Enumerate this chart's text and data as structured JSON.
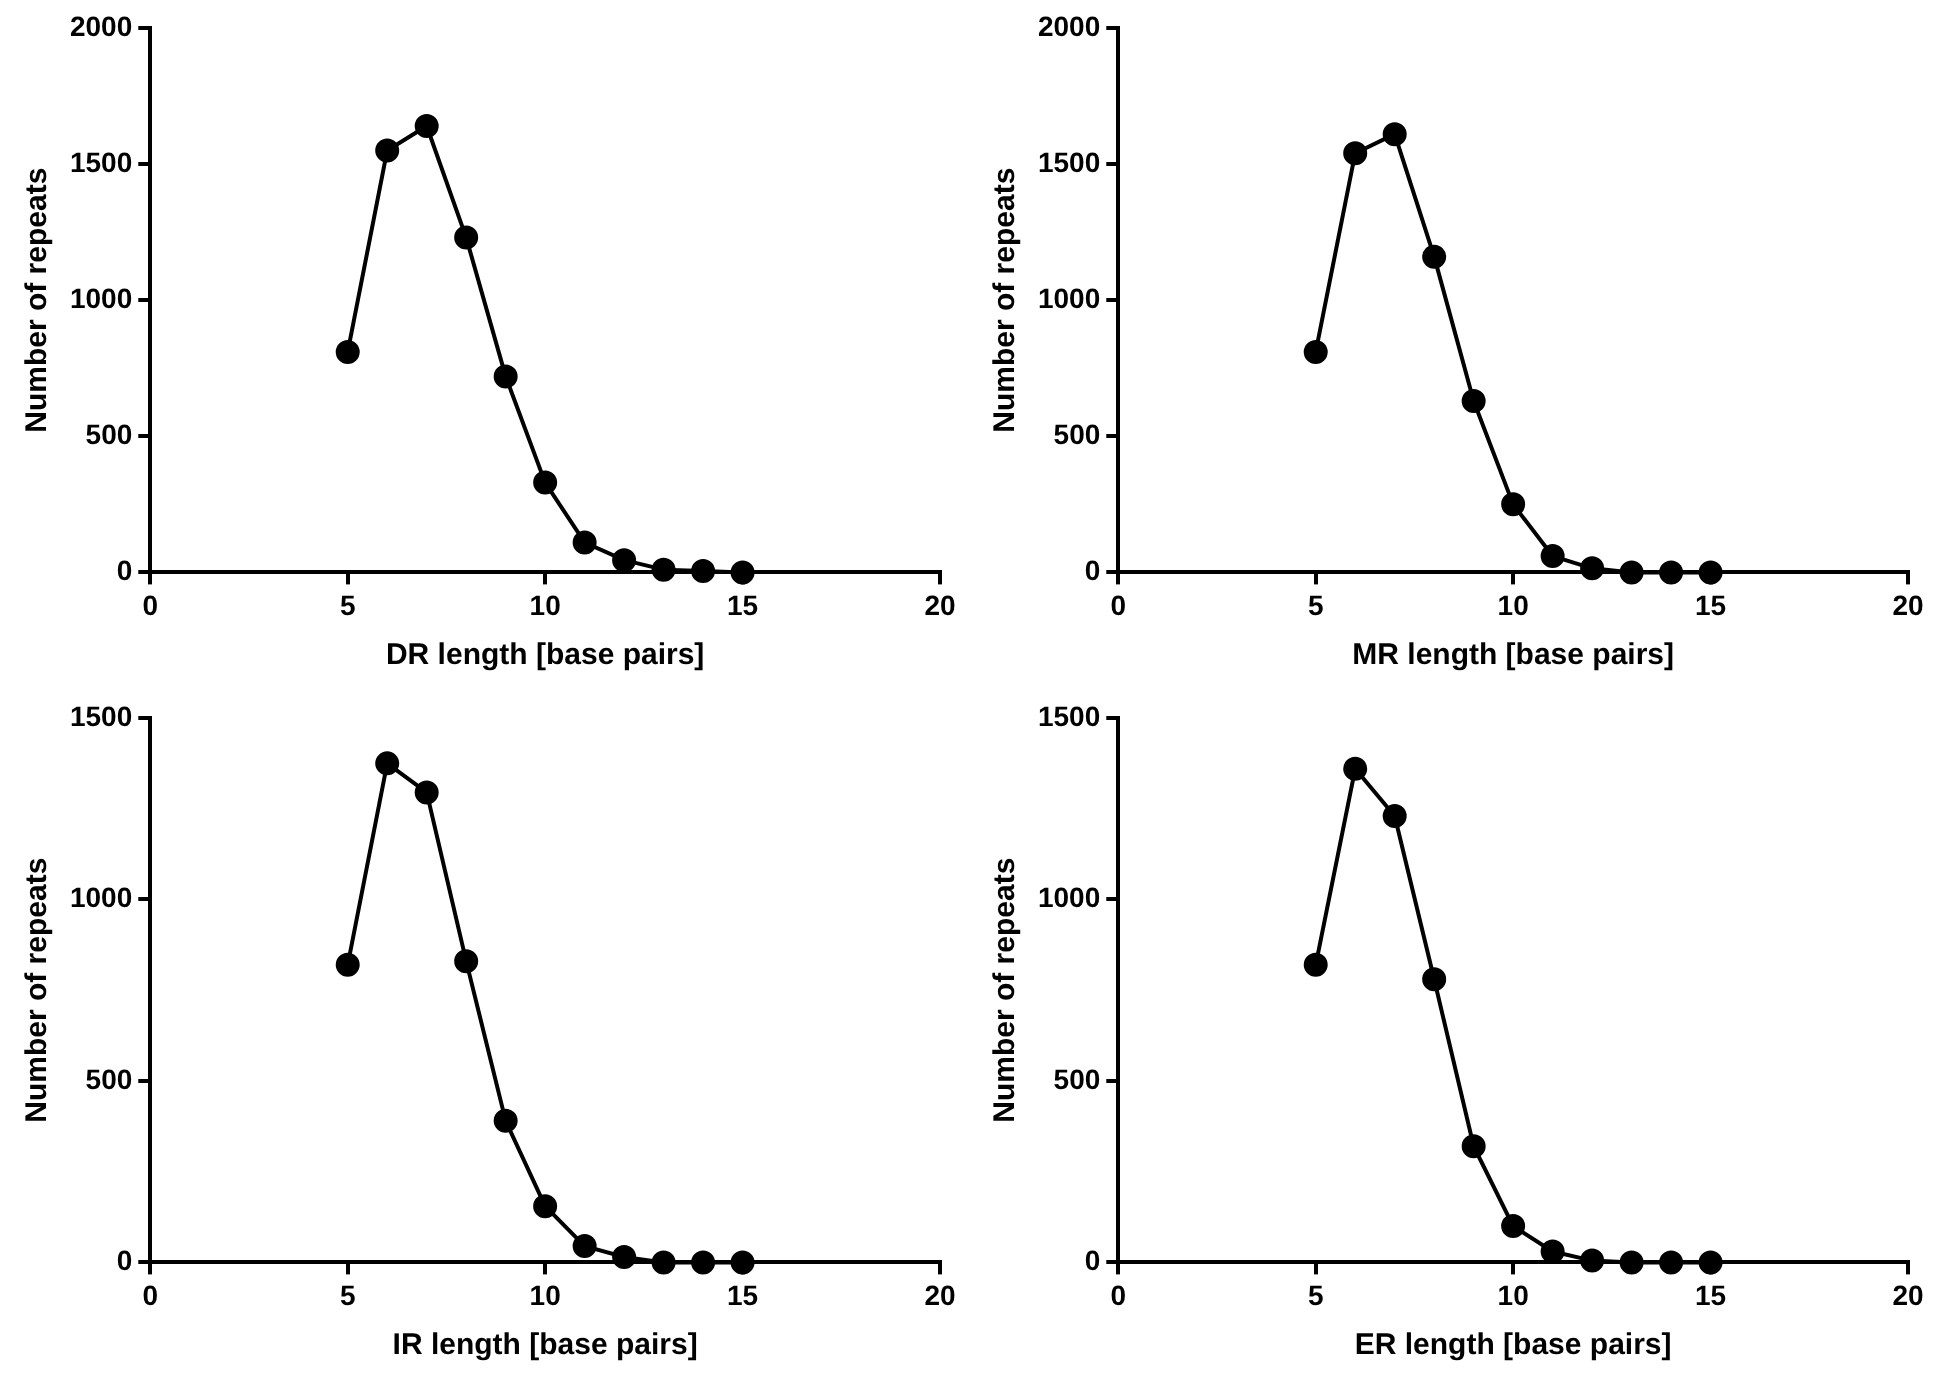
{
  "chart_data": [
    {
      "type": "line",
      "xlabel": "DR length [base pairs]",
      "ylabel": "Number of repeats",
      "x": [
        5,
        6,
        7,
        8,
        9,
        10,
        11,
        12,
        13,
        14,
        15
      ],
      "series": [
        {
          "color": "#000000",
          "values": [
            810,
            1550,
            1640,
            1230,
            720,
            330,
            110,
            45,
            10,
            5,
            0
          ]
        }
      ],
      "xlim": [
        0,
        20
      ],
      "xticks": [
        0,
        5,
        10,
        15,
        20
      ],
      "ylim": [
        0,
        2000
      ],
      "yticks": [
        0,
        500,
        1000,
        1500,
        2000
      ],
      "grid": false,
      "legend": false,
      "marker": "circle",
      "line_style": "solid"
    },
    {
      "type": "line",
      "xlabel": "MR length [base pairs]",
      "ylabel": "Number of repeats",
      "x": [
        5,
        6,
        7,
        8,
        9,
        10,
        11,
        12,
        13,
        14,
        15
      ],
      "series": [
        {
          "color": "#000000",
          "values": [
            810,
            1540,
            1610,
            1160,
            630,
            250,
            60,
            15,
            0,
            0,
            0
          ]
        }
      ],
      "xlim": [
        0,
        20
      ],
      "xticks": [
        0,
        5,
        10,
        15,
        20
      ],
      "ylim": [
        0,
        2000
      ],
      "yticks": [
        0,
        500,
        1000,
        1500,
        2000
      ],
      "grid": false,
      "legend": false,
      "marker": "circle",
      "line_style": "solid"
    },
    {
      "type": "line",
      "xlabel": "IR length [base pairs]",
      "ylabel": "Number of repeats",
      "x": [
        5,
        6,
        7,
        8,
        9,
        10,
        11,
        12,
        13,
        14,
        15
      ],
      "series": [
        {
          "color": "#000000",
          "values": [
            820,
            1375,
            1295,
            830,
            390,
            155,
            45,
            15,
            0,
            0,
            0
          ]
        }
      ],
      "xlim": [
        0,
        20
      ],
      "xticks": [
        0,
        5,
        10,
        15,
        20
      ],
      "ylim": [
        0,
        1500
      ],
      "yticks": [
        0,
        500,
        1000,
        1500
      ],
      "grid": false,
      "legend": false,
      "marker": "circle",
      "line_style": "solid"
    },
    {
      "type": "line",
      "xlabel": "ER length [base pairs]",
      "ylabel": "Number of repeats",
      "x": [
        5,
        6,
        7,
        8,
        9,
        10,
        11,
        12,
        13,
        14,
        15
      ],
      "series": [
        {
          "color": "#000000",
          "values": [
            820,
            1360,
            1230,
            780,
            320,
            100,
            30,
            5,
            0,
            0,
            0
          ]
        }
      ],
      "xlim": [
        0,
        20
      ],
      "xticks": [
        0,
        5,
        10,
        15,
        20
      ],
      "ylim": [
        0,
        1500
      ],
      "yticks": [
        0,
        500,
        1000,
        1500
      ],
      "grid": false,
      "legend": false,
      "marker": "circle",
      "line_style": "solid"
    }
  ]
}
